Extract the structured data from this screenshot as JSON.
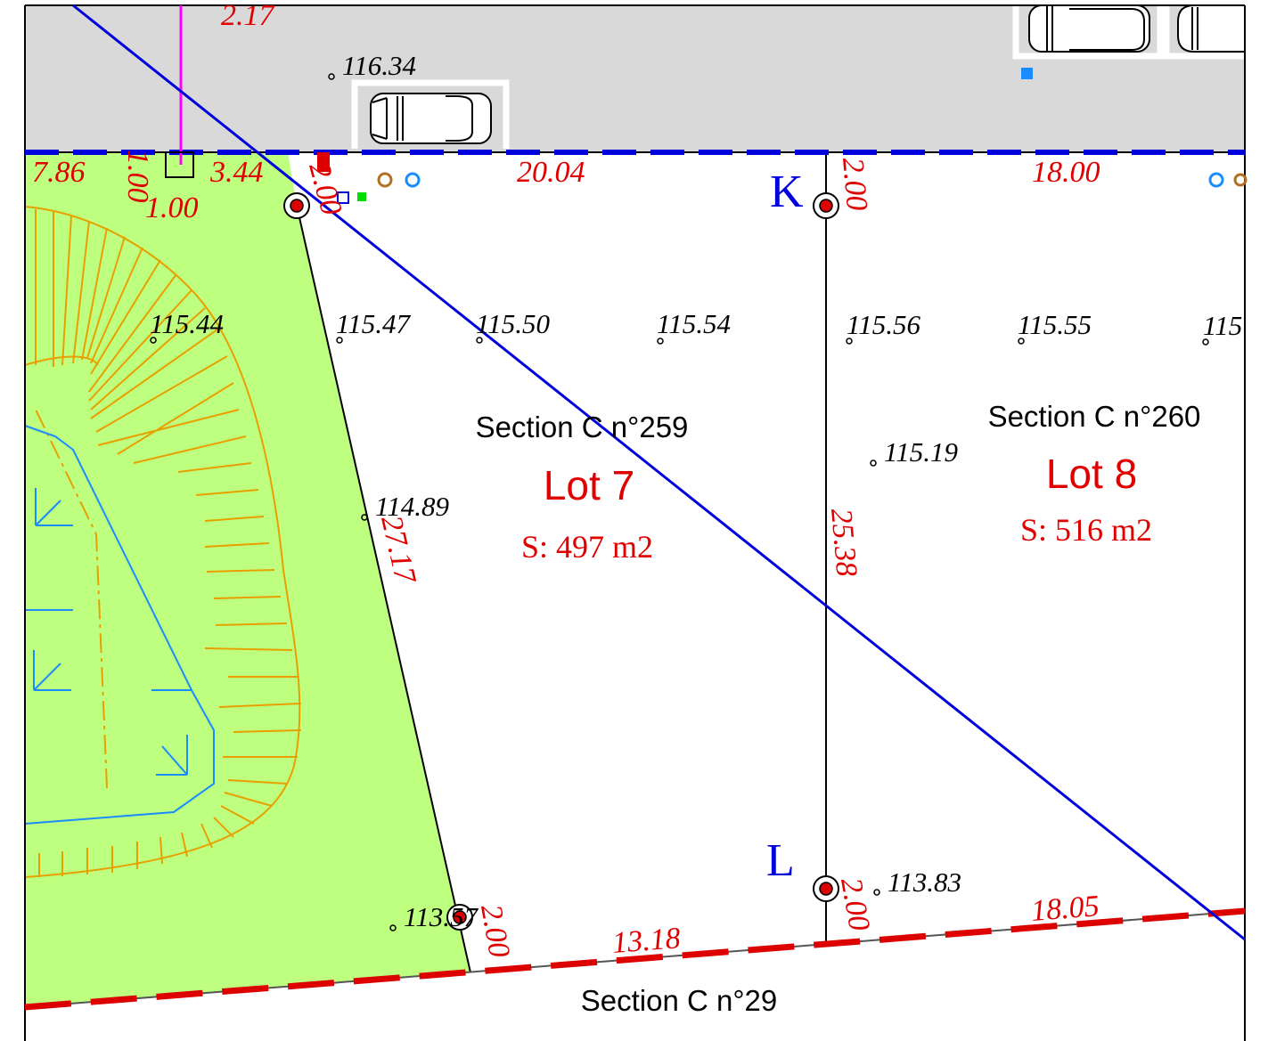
{
  "parcels": [
    {
      "section": "Section C n°259",
      "lot": "Lot 7",
      "area": "S: 497 m2"
    },
    {
      "section": "Section C n°260",
      "lot": "Lot 8",
      "area": "S: 516 m2"
    },
    {
      "section": "Section C n°29"
    }
  ],
  "points": {
    "k": "K",
    "l": "L"
  },
  "elevations": [
    "116.34",
    "115.44",
    "115.47",
    "115.50",
    "115.54",
    "115.56",
    "115.55",
    "115",
    "115.19",
    "114.89",
    "113.83",
    "113.57"
  ],
  "dimensions": [
    "2.17",
    "7.86",
    "1.00",
    "1.00",
    "3.44",
    "2.00",
    "20.04",
    "2.00",
    "18.00",
    "27.17",
    "25.38",
    "2.00",
    "13.18",
    "2.00",
    "18.05"
  ],
  "colors": {
    "road": "#d9d9d9",
    "green_area": "#bfff7f",
    "embankment": "#e8a000",
    "network_line": "#0000dd",
    "boundary_red": "#dd0000",
    "dimension_text": "#e00000",
    "magenta_line": "#ff00ff"
  }
}
